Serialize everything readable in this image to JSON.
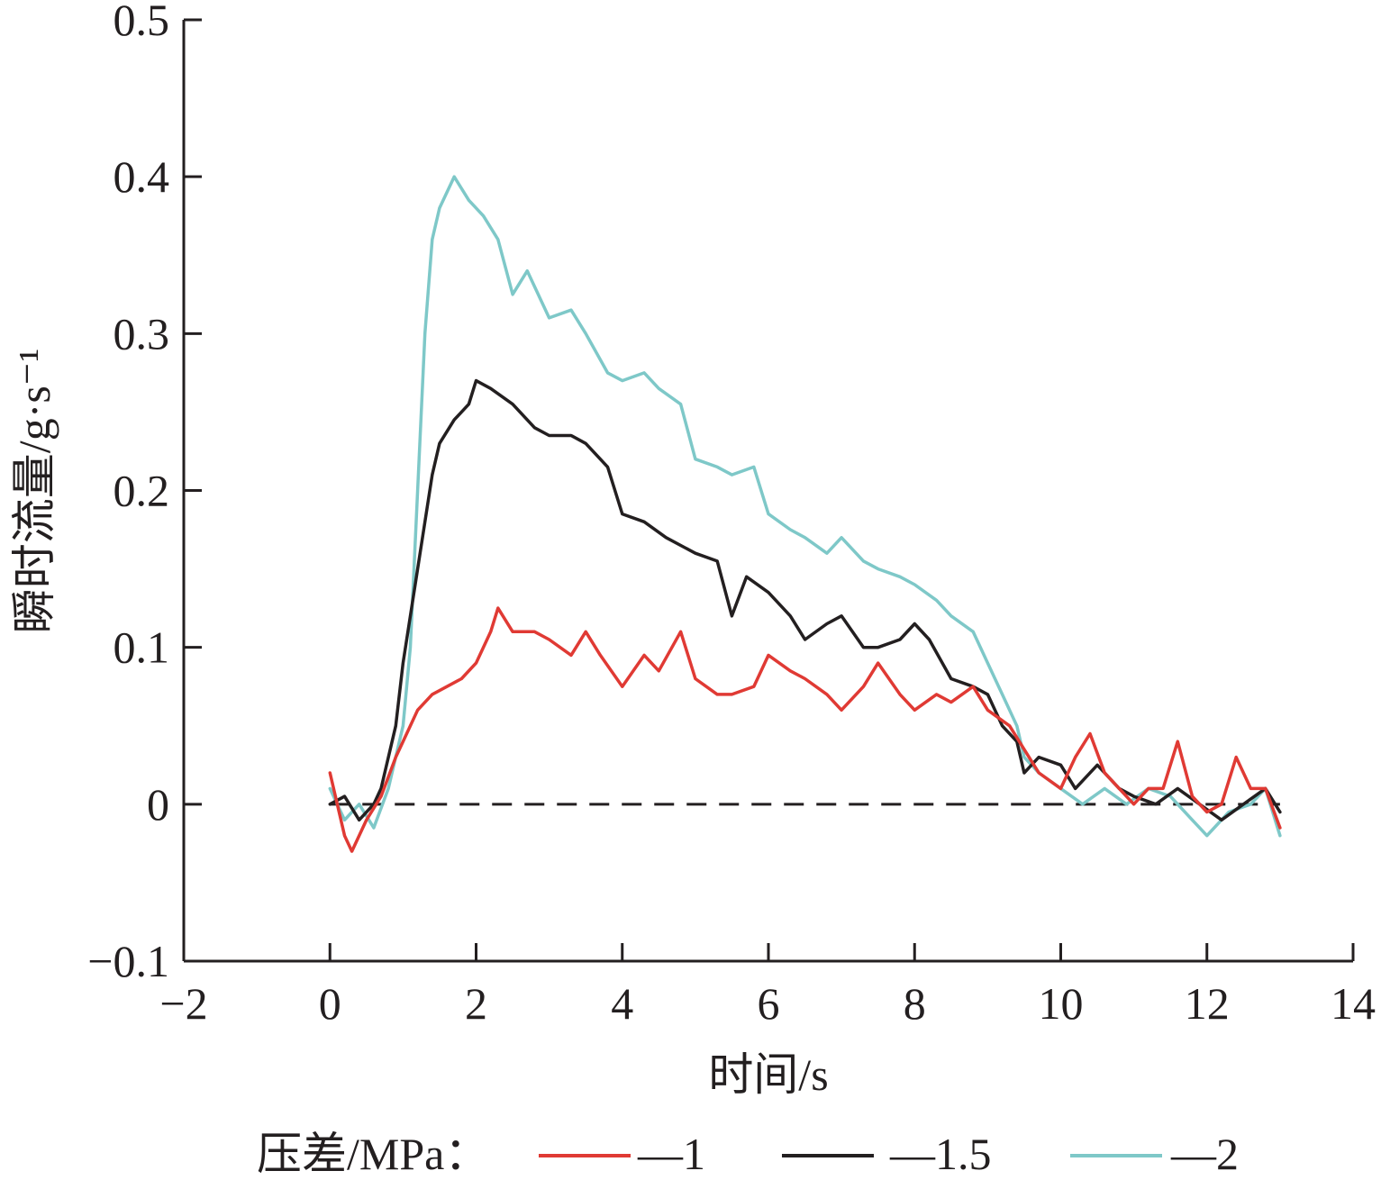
{
  "chart_data": {
    "type": "line",
    "title": "",
    "xlabel": "时间/s",
    "ylabel": "瞬时流量/g·s⁻¹",
    "xlim": [
      -2,
      14
    ],
    "ylim": [
      -0.1,
      0.5
    ],
    "x_ticks": [
      -2,
      0,
      2,
      4,
      6,
      8,
      10,
      12,
      14
    ],
    "x_tick_labels": [
      "−2",
      "0",
      "2",
      "4",
      "6",
      "8",
      "10",
      "12",
      "14"
    ],
    "y_ticks": [
      -0.1,
      0,
      0.1,
      0.2,
      0.3,
      0.4,
      0.5
    ],
    "y_tick_labels": [
      "−0.1",
      "0",
      "0.1",
      "0.2",
      "0.3",
      "0.4",
      "0.5"
    ],
    "grid": false,
    "baseline": {
      "y": 0,
      "x_range": [
        0,
        13
      ],
      "style": "dashed",
      "color": "#231f20"
    },
    "legend": {
      "title": "压差/MPa：",
      "placement": "bottom",
      "entries": [
        "—1",
        "—1.5",
        "—2"
      ]
    },
    "series": [
      {
        "name": "1",
        "color": "#e03a34",
        "x": [
          0,
          0.2,
          0.3,
          0.5,
          0.7,
          0.9,
          1.0,
          1.2,
          1.4,
          1.6,
          1.8,
          2.0,
          2.2,
          2.3,
          2.5,
          2.8,
          3.0,
          3.3,
          3.5,
          3.7,
          4.0,
          4.3,
          4.5,
          4.8,
          5.0,
          5.3,
          5.5,
          5.8,
          6.0,
          6.3,
          6.5,
          6.8,
          7.0,
          7.3,
          7.5,
          7.8,
          8.0,
          8.3,
          8.5,
          8.8,
          9.0,
          9.3,
          9.5,
          9.7,
          10.0,
          10.2,
          10.4,
          10.6,
          10.8,
          11.0,
          11.2,
          11.4,
          11.6,
          11.8,
          12.0,
          12.2,
          12.4,
          12.6,
          12.8,
          13.0
        ],
        "y": [
          0.02,
          -0.02,
          -0.03,
          -0.01,
          0.005,
          0.03,
          0.04,
          0.06,
          0.07,
          0.075,
          0.08,
          0.09,
          0.11,
          0.125,
          0.11,
          0.11,
          0.105,
          0.095,
          0.11,
          0.095,
          0.075,
          0.095,
          0.085,
          0.11,
          0.08,
          0.07,
          0.07,
          0.075,
          0.095,
          0.085,
          0.08,
          0.07,
          0.06,
          0.075,
          0.09,
          0.07,
          0.06,
          0.07,
          0.065,
          0.075,
          0.06,
          0.05,
          0.035,
          0.02,
          0.01,
          0.03,
          0.045,
          0.02,
          0.01,
          0.0,
          0.01,
          0.01,
          0.04,
          0.005,
          -0.005,
          0.0,
          0.03,
          0.01,
          0.01,
          -0.015
        ]
      },
      {
        "name": "1.5",
        "color": "#231f20",
        "x": [
          0,
          0.2,
          0.4,
          0.6,
          0.7,
          0.9,
          1.0,
          1.2,
          1.4,
          1.5,
          1.7,
          1.9,
          2.0,
          2.2,
          2.5,
          2.8,
          3.0,
          3.3,
          3.5,
          3.8,
          4.0,
          4.3,
          4.6,
          5.0,
          5.3,
          5.5,
          5.7,
          6.0,
          6.3,
          6.5,
          6.8,
          7.0,
          7.3,
          7.5,
          7.8,
          8.0,
          8.2,
          8.5,
          8.8,
          9.0,
          9.2,
          9.4,
          9.5,
          9.7,
          10.0,
          10.2,
          10.5,
          10.8,
          11.0,
          11.3,
          11.6,
          11.9,
          12.2,
          12.5,
          12.8,
          13.0
        ],
        "y": [
          0.0,
          0.005,
          -0.01,
          0.0,
          0.01,
          0.05,
          0.09,
          0.15,
          0.21,
          0.23,
          0.245,
          0.255,
          0.27,
          0.265,
          0.255,
          0.24,
          0.235,
          0.235,
          0.23,
          0.215,
          0.185,
          0.18,
          0.17,
          0.16,
          0.155,
          0.12,
          0.145,
          0.135,
          0.12,
          0.105,
          0.115,
          0.12,
          0.1,
          0.1,
          0.105,
          0.115,
          0.105,
          0.08,
          0.075,
          0.07,
          0.05,
          0.04,
          0.02,
          0.03,
          0.025,
          0.01,
          0.025,
          0.01,
          0.005,
          0.0,
          0.01,
          0.0,
          -0.01,
          0.0,
          0.01,
          -0.005
        ]
      },
      {
        "name": "2",
        "color": "#7ec8c8",
        "x": [
          0,
          0.2,
          0.4,
          0.6,
          0.8,
          1.0,
          1.1,
          1.2,
          1.3,
          1.4,
          1.5,
          1.7,
          1.9,
          2.1,
          2.3,
          2.5,
          2.7,
          3.0,
          3.3,
          3.5,
          3.8,
          4.0,
          4.3,
          4.5,
          4.8,
          5.0,
          5.3,
          5.5,
          5.8,
          6.0,
          6.3,
          6.5,
          6.8,
          7.0,
          7.3,
          7.5,
          7.8,
          8.0,
          8.3,
          8.5,
          8.8,
          9.0,
          9.2,
          9.4,
          9.5,
          9.7,
          10.0,
          10.3,
          10.6,
          10.9,
          11.2,
          11.5,
          11.8,
          12.0,
          12.3,
          12.6,
          12.8,
          13.0
        ],
        "y": [
          0.01,
          -0.01,
          0.0,
          -0.015,
          0.01,
          0.05,
          0.1,
          0.2,
          0.3,
          0.36,
          0.38,
          0.4,
          0.385,
          0.375,
          0.36,
          0.325,
          0.34,
          0.31,
          0.315,
          0.3,
          0.275,
          0.27,
          0.275,
          0.265,
          0.255,
          0.22,
          0.215,
          0.21,
          0.215,
          0.185,
          0.175,
          0.17,
          0.16,
          0.17,
          0.155,
          0.15,
          0.145,
          0.14,
          0.13,
          0.12,
          0.11,
          0.09,
          0.07,
          0.05,
          0.03,
          0.02,
          0.01,
          0.0,
          0.01,
          0.0,
          0.01,
          0.005,
          -0.01,
          -0.02,
          -0.005,
          0.0,
          0.01,
          -0.02
        ]
      }
    ]
  }
}
